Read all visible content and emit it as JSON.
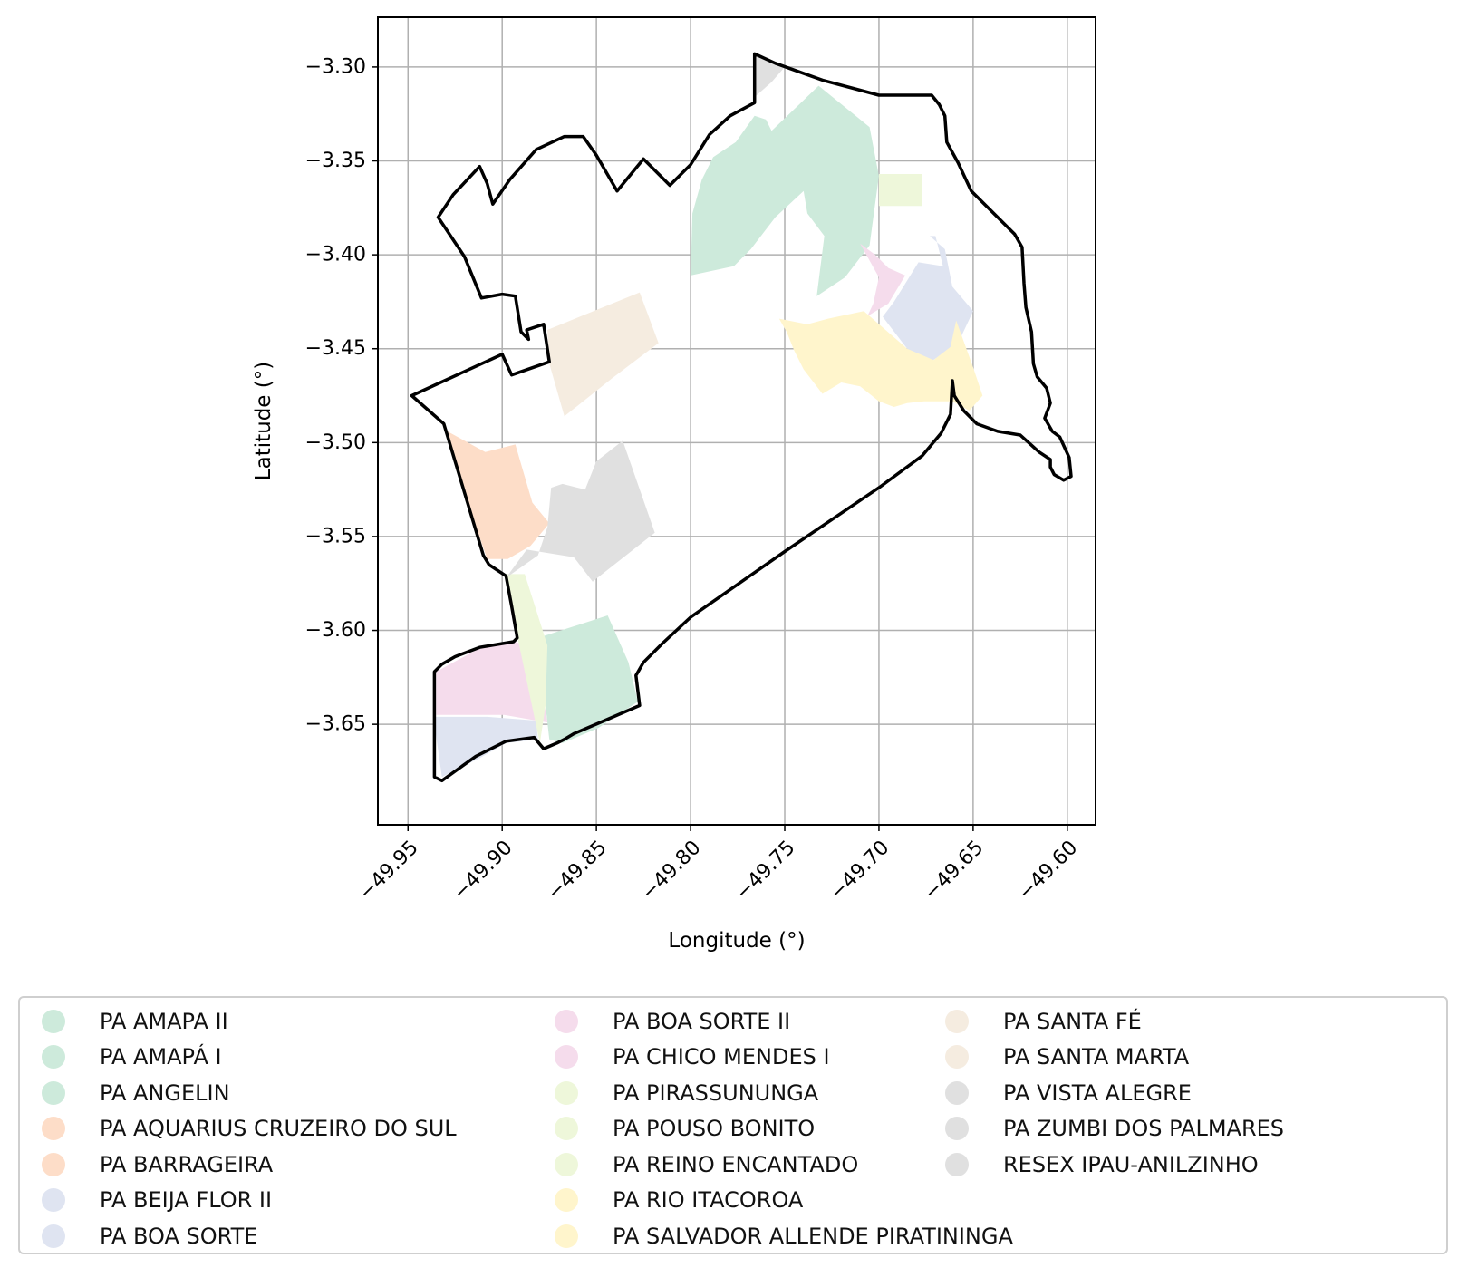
{
  "chart_data": {
    "type": "map",
    "xlabel": "Longitude (°)",
    "ylabel": "Latitude (°)",
    "xlim": [
      -49.966,
      -49.585
    ],
    "ylim": [
      -3.7035,
      -3.2735
    ],
    "xticks": [
      -49.95,
      -49.9,
      -49.85,
      -49.8,
      -49.75,
      -49.7,
      -49.65,
      -49.6
    ],
    "xtick_labels": [
      "−49.95",
      "−49.90",
      "−49.85",
      "−49.80",
      "−49.75",
      "−49.70",
      "−49.65",
      "−49.60"
    ],
    "yticks": [
      -3.3,
      -3.35,
      -3.4,
      -3.45,
      -3.5,
      -3.55,
      -3.6,
      -3.65
    ],
    "ytick_labels": [
      "−3.30",
      "−3.35",
      "−3.40",
      "−3.45",
      "−3.50",
      "−3.55",
      "−3.60",
      "−3.65"
    ],
    "grid": true,
    "legend_position": "bottom",
    "boundary": {
      "color": "#000000",
      "coords": [
        [
          -49.766,
          -3.293
        ],
        [
          -49.755,
          -3.298
        ],
        [
          -49.73,
          -3.307
        ],
        [
          -49.7,
          -3.315
        ],
        [
          -49.683,
          -3.315
        ],
        [
          -49.672,
          -3.315
        ],
        [
          -49.668,
          -3.32
        ],
        [
          -49.665,
          -3.326
        ],
        [
          -49.664,
          -3.34
        ],
        [
          -49.658,
          -3.351
        ],
        [
          -49.651,
          -3.366
        ],
        [
          -49.643,
          -3.374
        ],
        [
          -49.628,
          -3.389
        ],
        [
          -49.624,
          -3.396
        ],
        [
          -49.623,
          -3.415
        ],
        [
          -49.622,
          -3.428
        ],
        [
          -49.619,
          -3.441
        ],
        [
          -49.618,
          -3.458
        ],
        [
          -49.616,
          -3.465
        ],
        [
          -49.611,
          -3.471
        ],
        [
          -49.609,
          -3.479
        ],
        [
          -49.612,
          -3.487
        ],
        [
          -49.608,
          -3.494
        ],
        [
          -49.604,
          -3.497
        ],
        [
          -49.599,
          -3.508
        ],
        [
          -49.598,
          -3.518
        ],
        [
          -49.602,
          -3.52
        ],
        [
          -49.607,
          -3.517
        ],
        [
          -49.609,
          -3.513
        ],
        [
          -49.609,
          -3.509
        ],
        [
          -49.615,
          -3.505
        ],
        [
          -49.625,
          -3.496
        ],
        [
          -49.637,
          -3.494
        ],
        [
          -49.648,
          -3.49
        ],
        [
          -49.655,
          -3.483
        ],
        [
          -49.66,
          -3.475
        ],
        [
          -49.661,
          -3.467
        ],
        [
          -49.662,
          -3.485
        ],
        [
          -49.667,
          -3.495
        ],
        [
          -49.677,
          -3.507
        ],
        [
          -49.7,
          -3.524
        ],
        [
          -49.75,
          -3.558
        ],
        [
          -49.8,
          -3.593
        ],
        [
          -49.815,
          -3.607
        ],
        [
          -49.825,
          -3.617
        ],
        [
          -49.829,
          -3.624
        ],
        [
          -49.827,
          -3.64
        ],
        [
          -49.848,
          -3.649
        ],
        [
          -49.862,
          -3.655
        ],
        [
          -49.867,
          -3.658
        ],
        [
          -49.871,
          -3.66
        ],
        [
          -49.878,
          -3.663
        ],
        [
          -49.883,
          -3.657
        ],
        [
          -49.898,
          -3.659
        ],
        [
          -49.914,
          -3.667
        ],
        [
          -49.932,
          -3.68
        ],
        [
          -49.936,
          -3.678
        ],
        [
          -49.936,
          -3.622
        ],
        [
          -49.932,
          -3.618
        ],
        [
          -49.925,
          -3.614
        ],
        [
          -49.912,
          -3.609
        ],
        [
          -49.894,
          -3.606
        ],
        [
          -49.892,
          -3.604
        ],
        [
          -49.895,
          -3.587
        ],
        [
          -49.898,
          -3.571
        ],
        [
          -49.907,
          -3.565
        ],
        [
          -49.91,
          -3.56
        ],
        [
          -49.931,
          -3.49
        ],
        [
          -49.948,
          -3.475
        ],
        [
          -49.9,
          -3.453
        ],
        [
          -49.895,
          -3.464
        ],
        [
          -49.875,
          -3.457
        ],
        [
          -49.878,
          -3.437
        ],
        [
          -49.887,
          -3.44
        ],
        [
          -49.886,
          -3.445
        ],
        [
          -49.89,
          -3.441
        ],
        [
          -49.893,
          -3.422
        ],
        [
          -49.9,
          -3.421
        ],
        [
          -49.911,
          -3.423
        ],
        [
          -49.92,
          -3.401
        ],
        [
          -49.934,
          -3.38
        ],
        [
          -49.926,
          -3.368
        ],
        [
          -49.912,
          -3.353
        ],
        [
          -49.908,
          -3.362
        ],
        [
          -49.905,
          -3.373
        ],
        [
          -49.896,
          -3.36
        ],
        [
          -49.882,
          -3.344
        ],
        [
          -49.867,
          -3.337
        ],
        [
          -49.857,
          -3.337
        ],
        [
          -49.85,
          -3.347
        ],
        [
          -49.839,
          -3.366
        ],
        [
          -49.825,
          -3.349
        ],
        [
          -49.811,
          -3.363
        ],
        [
          -49.8,
          -3.352
        ],
        [
          -49.79,
          -3.336
        ],
        [
          -49.779,
          -3.326
        ],
        [
          -49.766,
          -3.319
        ],
        [
          -49.766,
          -3.293
        ]
      ]
    },
    "series": [
      {
        "name": "PA AMAPA II",
        "color": "#cdeadb",
        "regions": []
      },
      {
        "name": "PA AMAPÁ I",
        "color": "#cdeadb",
        "regions": [
          [
            [
              -49.788,
              -3.348
            ],
            [
              -49.776,
              -3.34
            ],
            [
              -49.766,
              -3.326
            ],
            [
              -49.76,
              -3.328
            ],
            [
              -49.757,
              -3.334
            ],
            [
              -49.732,
              -3.31
            ],
            [
              -49.705,
              -3.332
            ],
            [
              -49.7,
              -3.358
            ],
            [
              -49.705,
              -3.395
            ],
            [
              -49.718,
              -3.412
            ],
            [
              -49.733,
              -3.422
            ],
            [
              -49.729,
              -3.39
            ],
            [
              -49.738,
              -3.378
            ],
            [
              -49.74,
              -3.366
            ],
            [
              -49.755,
              -3.38
            ],
            [
              -49.768,
              -3.397
            ],
            [
              -49.777,
              -3.406
            ],
            [
              -49.8,
              -3.411
            ],
            [
              -49.799,
              -3.378
            ],
            [
              -49.794,
              -3.36
            ]
          ]
        ]
      },
      {
        "name": "PA ANGELIN",
        "color": "#cdeadb",
        "regions": [
          [
            [
              -49.878,
              -3.603
            ],
            [
              -49.844,
              -3.592
            ],
            [
              -49.833,
              -3.617
            ],
            [
              -49.828,
              -3.638
            ],
            [
              -49.849,
              -3.652
            ],
            [
              -49.868,
              -3.66
            ],
            [
              -49.875,
              -3.658
            ],
            [
              -49.877,
              -3.64
            ]
          ]
        ]
      },
      {
        "name": "PA AQUARIUS CRUZEIRO DO SUL",
        "color": "#fdddc8",
        "regions": [
          [
            [
              -49.931,
              -3.493
            ],
            [
              -49.909,
              -3.505
            ],
            [
              -49.893,
              -3.501
            ],
            [
              -49.884,
              -3.532
            ],
            [
              -49.875,
              -3.543
            ],
            [
              -49.885,
              -3.555
            ],
            [
              -49.897,
              -3.562
            ],
            [
              -49.908,
              -3.562
            ],
            [
              -49.92,
              -3.527
            ]
          ]
        ]
      },
      {
        "name": "PA BARRAGEIRA",
        "color": "#fdddc8",
        "regions": []
      },
      {
        "name": "PA BEIJA FLOR II",
        "color": "#dfe4f1",
        "regions": []
      },
      {
        "name": "PA BOA SORTE",
        "color": "#dfe4f1",
        "regions": [
          [
            [
              -49.67,
              -3.39
            ],
            [
              -49.666,
              -3.406
            ],
            [
              -49.679,
              -3.404
            ],
            [
              -49.692,
              -3.425
            ],
            [
              -49.698,
              -3.433
            ],
            [
              -49.685,
              -3.45
            ],
            [
              -49.674,
              -3.458
            ],
            [
              -49.658,
              -3.447
            ],
            [
              -49.65,
              -3.43
            ],
            [
              -49.661,
              -3.417
            ],
            [
              -49.665,
              -3.397
            ],
            [
              -49.673,
              -3.39
            ]
          ],
          [
            [
              -49.936,
              -3.65
            ],
            [
              -49.932,
              -3.678
            ],
            [
              -49.912,
              -3.668
            ],
            [
              -49.898,
              -3.66
            ],
            [
              -49.881,
              -3.658
            ],
            [
              -49.882,
              -3.648
            ],
            [
              -49.908,
              -3.646
            ],
            [
              -49.936,
              -3.646
            ]
          ]
        ]
      },
      {
        "name": "PA BOA SORTE II",
        "color": "#f5dcec",
        "regions": [
          [
            [
              -49.71,
              -3.394
            ],
            [
              -49.702,
              -3.4
            ],
            [
              -49.695,
              -3.407
            ],
            [
              -49.686,
              -3.411
            ],
            [
              -49.695,
              -3.426
            ],
            [
              -49.705,
              -3.432
            ],
            [
              -49.709,
              -3.439
            ],
            [
              -49.703,
              -3.426
            ],
            [
              -49.7,
              -3.412
            ]
          ]
        ]
      },
      {
        "name": "PA CHICO MENDES I",
        "color": "#f5dcec",
        "regions": [
          [
            [
              -49.935,
              -3.622
            ],
            [
              -49.913,
              -3.61
            ],
            [
              -49.893,
              -3.606
            ],
            [
              -49.882,
              -3.611
            ],
            [
              -49.876,
              -3.649
            ],
            [
              -49.899,
              -3.645
            ],
            [
              -49.935,
              -3.645
            ]
          ]
        ]
      },
      {
        "name": "PA PIRASSUNUNGA",
        "color": "#eef7da",
        "regions": [
          [
            [
              -49.7,
              -3.357
            ],
            [
              -49.677,
              -3.357
            ],
            [
              -49.677,
              -3.374
            ],
            [
              -49.7,
              -3.374
            ]
          ]
        ]
      },
      {
        "name": "PA POUSO BONITO",
        "color": "#eef7da",
        "regions": [
          [
            [
              -49.898,
              -3.57
            ],
            [
              -49.888,
              -3.57
            ],
            [
              -49.876,
              -3.608
            ],
            [
              -49.877,
              -3.64
            ],
            [
              -49.88,
              -3.66
            ],
            [
              -49.892,
              -3.603
            ],
            [
              -49.895,
              -3.585
            ]
          ]
        ]
      },
      {
        "name": "PA REINO ENCANTADO",
        "color": "#eef7da",
        "regions": []
      },
      {
        "name": "PA RIO ITACOROA",
        "color": "#fff5cc",
        "regions": [
          [
            [
              -49.753,
              -3.434
            ],
            [
              -49.738,
              -3.437
            ],
            [
              -49.727,
              -3.434
            ],
            [
              -49.708,
              -3.43
            ],
            [
              -49.685,
              -3.45
            ],
            [
              -49.671,
              -3.456
            ],
            [
              -49.662,
              -3.449
            ],
            [
              -49.659,
              -3.435
            ],
            [
              -49.65,
              -3.46
            ],
            [
              -49.645,
              -3.475
            ],
            [
              -49.652,
              -3.483
            ],
            [
              -49.661,
              -3.478
            ],
            [
              -49.676,
              -3.478
            ],
            [
              -49.685,
              -3.479
            ],
            [
              -49.692,
              -3.481
            ],
            [
              -49.7,
              -3.478
            ],
            [
              -49.71,
              -3.47
            ],
            [
              -49.72,
              -3.468
            ],
            [
              -49.73,
              -3.474
            ],
            [
              -49.74,
              -3.461
            ],
            [
              -49.745,
              -3.451
            ],
            [
              -49.749,
              -3.441
            ]
          ]
        ]
      },
      {
        "name": "PA SALVADOR ALLENDE PIRATININGA",
        "color": "#fff5cc",
        "regions": []
      },
      {
        "name": "PA SANTA FÉ",
        "color": "#f5ece0",
        "regions": [
          [
            [
              -49.876,
              -3.44
            ],
            [
              -49.827,
              -3.42
            ],
            [
              -49.817,
              -3.447
            ],
            [
              -49.842,
              -3.466
            ],
            [
              -49.867,
              -3.486
            ],
            [
              -49.875,
              -3.458
            ]
          ]
        ]
      },
      {
        "name": "PA SANTA MARTA",
        "color": "#f5ece0",
        "regions": []
      },
      {
        "name": "PA VISTA ALEGRE",
        "color": "#e0e0e0",
        "regions": [
          [
            [
              -49.874,
              -3.524
            ],
            [
              -49.868,
              -3.522
            ],
            [
              -49.856,
              -3.525
            ],
            [
              -49.85,
              -3.51
            ],
            [
              -49.836,
              -3.499
            ],
            [
              -49.819,
              -3.548
            ],
            [
              -49.852,
              -3.574
            ],
            [
              -49.862,
              -3.561
            ],
            [
              -49.887,
              -3.557
            ],
            [
              -49.898,
              -3.572
            ],
            [
              -49.881,
              -3.56
            ],
            [
              -49.876,
              -3.545
            ]
          ]
        ]
      },
      {
        "name": "PA ZUMBI DOS PALMARES",
        "color": "#e0e0e0",
        "regions": [
          [
            [
              -49.766,
              -3.293
            ],
            [
              -49.758,
              -3.296
            ],
            [
              -49.75,
              -3.3
            ],
            [
              -49.757,
              -3.308
            ],
            [
              -49.766,
              -3.316
            ]
          ]
        ]
      },
      {
        "name": "RESEX IPAU-ANILZINHO",
        "color": "#e0e0e0",
        "regions": []
      }
    ]
  }
}
